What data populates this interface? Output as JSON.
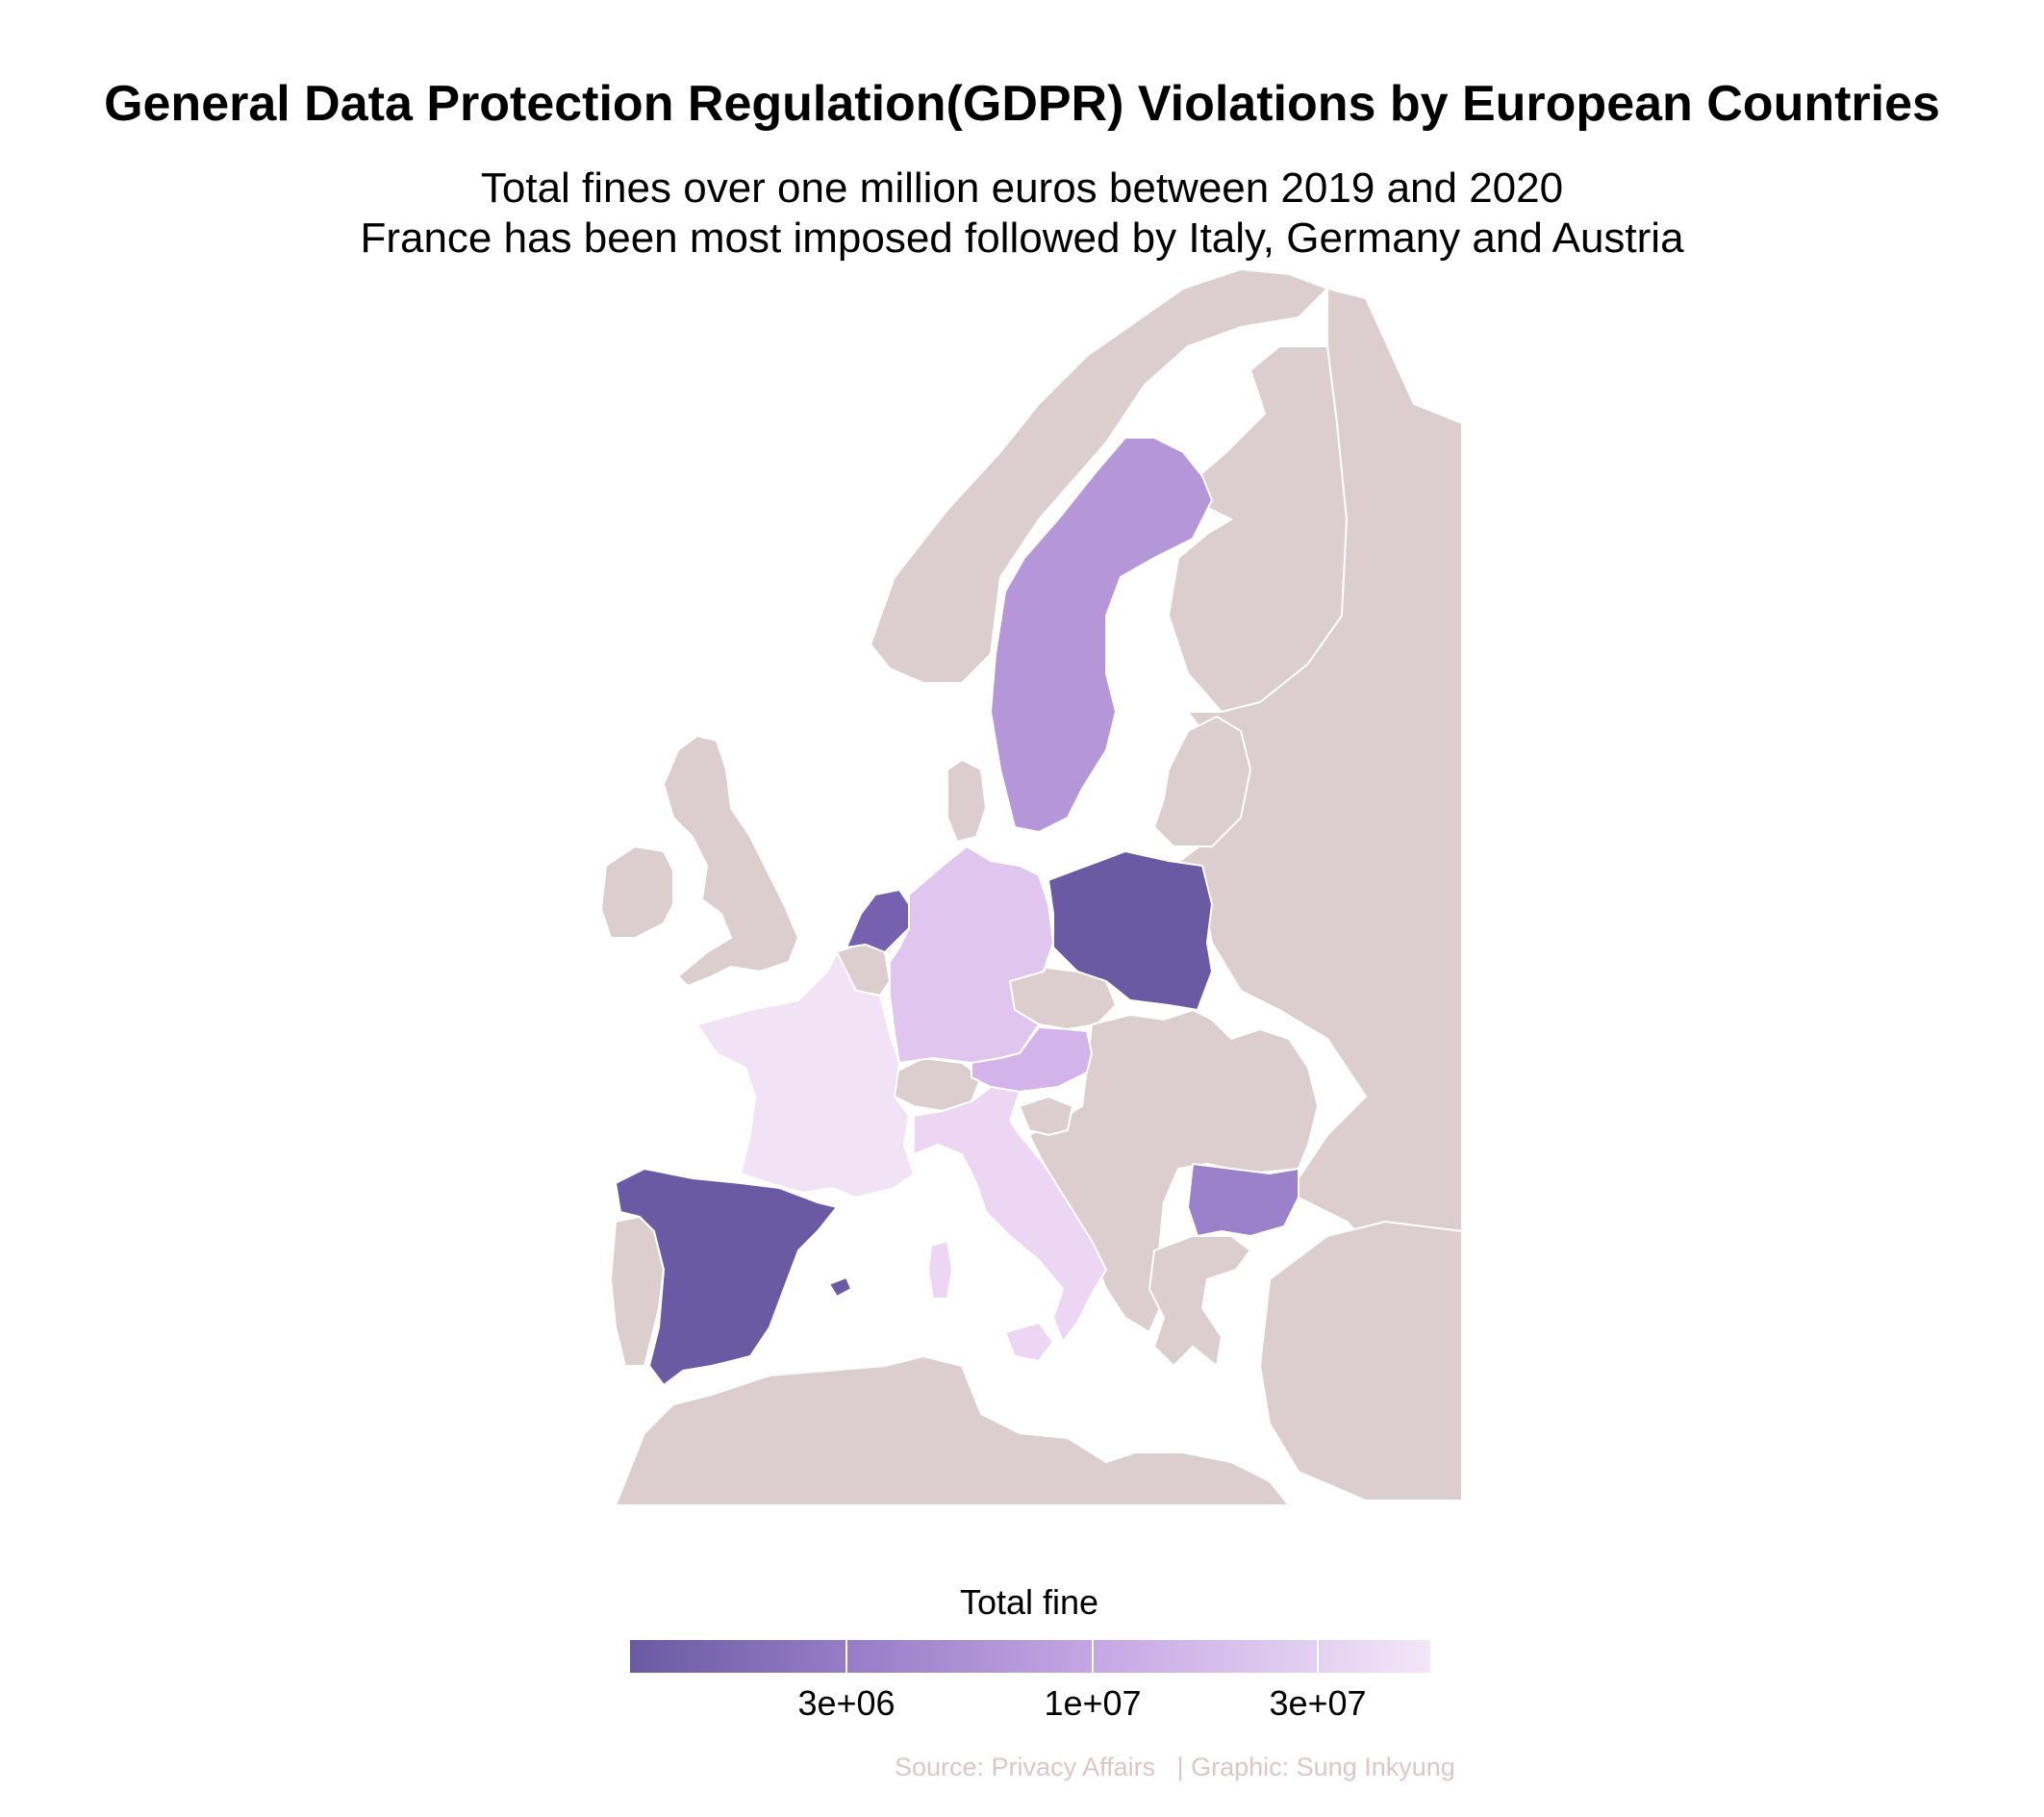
{
  "title": "General Data Protection Regulation(GDPR) Violations by European Countries",
  "subtitle": [
    "Total fines over one million euros between 2019 and 2020",
    "France has been most imposed followed by Italy, Germany and Austria"
  ],
  "colors": {
    "no_data": "#dccdce",
    "border": "#ffffff",
    "scale_low": "#6a5aa3",
    "scale_high": "#f3e6f8"
  },
  "map_data": {
    "region": "Europe",
    "fill_variable": "Total fine",
    "scale": "log",
    "countries": [
      {
        "name": "France",
        "fill": "#f1e2f6",
        "level": "highest"
      },
      {
        "name": "Italy",
        "fill": "#ecd6f3",
        "level": "high"
      },
      {
        "name": "Germany",
        "fill": "#e0c6ef",
        "level": "high"
      },
      {
        "name": "Austria",
        "fill": "#d3b3ea",
        "level": "high"
      },
      {
        "name": "Sweden",
        "fill": "#b596d9",
        "level": "medium"
      },
      {
        "name": "Bulgaria",
        "fill": "#9b80ca",
        "level": "medium-low"
      },
      {
        "name": "Netherlands",
        "fill": "#7561b0",
        "level": "low"
      },
      {
        "name": "Poland",
        "fill": "#6a5aa3",
        "level": "low"
      },
      {
        "name": "Spain",
        "fill": "#6a5aa3",
        "level": "low"
      }
    ]
  },
  "legend": {
    "title": "Total fine",
    "ticks": [
      "3e+06",
      "1e+07",
      "3e+07"
    ]
  },
  "caption": "Source: Privacy Affairs   | Graphic: Sung Inkyung"
}
